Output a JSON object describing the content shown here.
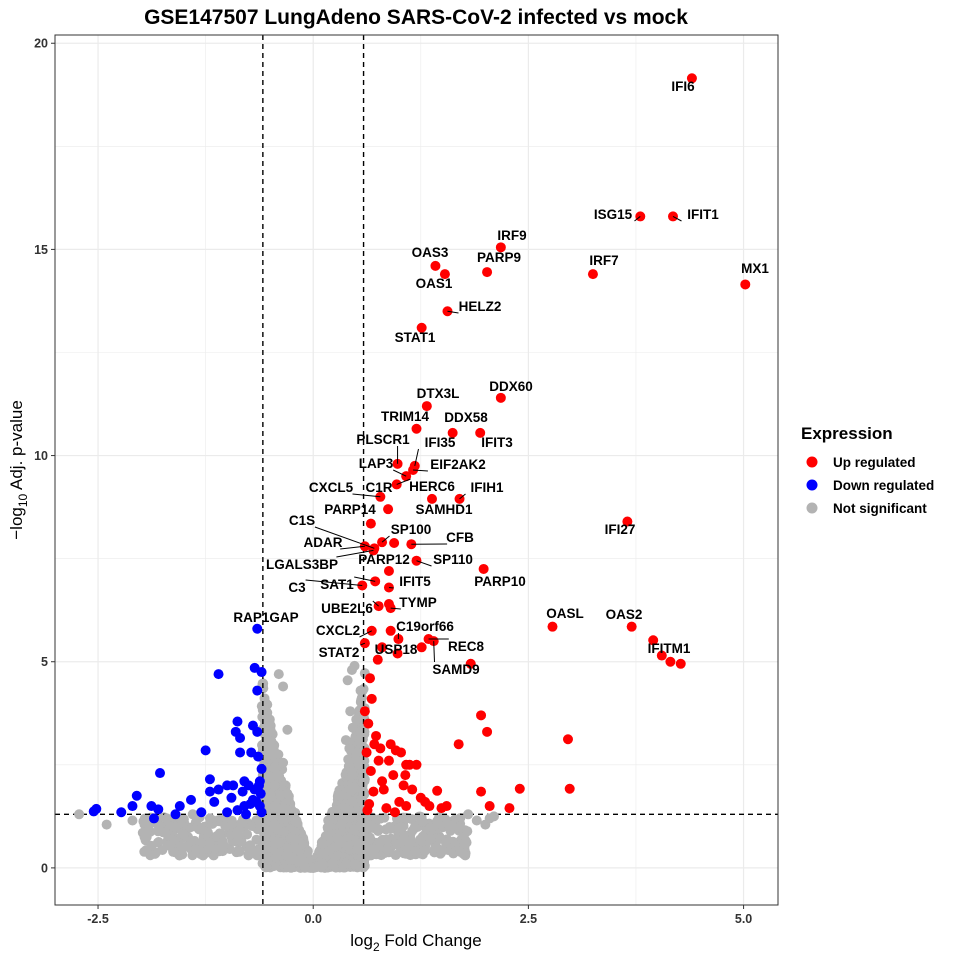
{
  "chart_data": {
    "type": "scatter",
    "title": "GSE147507 LungAdeno SARS-CoV-2 infected vs mock",
    "xlabel": "log",
    "xlabel_sub": "2",
    "xlabel_rest": " Fold Change",
    "ylabel_prefix": "−log",
    "ylabel_sub": "10",
    "ylabel_rest": " Adj. p-value",
    "xlim": [
      -3.0,
      5.4
    ],
    "ylim": [
      -0.9,
      20.2
    ],
    "xticks": [
      -2.5,
      0.0,
      2.5,
      5.0
    ],
    "xtick_labels": [
      "-2.5",
      "0.0",
      "2.5",
      "5.0"
    ],
    "yticks": [
      0,
      5,
      10,
      15,
      20
    ],
    "ytick_labels": [
      "0",
      "5",
      "10",
      "15",
      "20"
    ],
    "thresholds": {
      "x": [
        -0.585,
        0.585
      ],
      "y": 1.3
    },
    "colors": {
      "up": "#ff0000",
      "down": "#0000ff",
      "ns": "#b3b3b3",
      "grid": "#ebebeb",
      "border": "#333333"
    },
    "legend": {
      "title": "Expression",
      "position": "right",
      "entries": [
        {
          "label": "Up regulated",
          "group": "up"
        },
        {
          "label": "Down regulated",
          "group": "down"
        },
        {
          "label": "Not significant",
          "group": "ns"
        }
      ]
    },
    "labeled_points": [
      {
        "gene": "IFI6",
        "x": 4.4,
        "y": 19.15
      },
      {
        "gene": "ISG15",
        "x": 3.8,
        "y": 15.8
      },
      {
        "gene": "IFIT1",
        "x": 4.18,
        "y": 15.8
      },
      {
        "gene": "IRF9",
        "x": 2.18,
        "y": 15.05
      },
      {
        "gene": "OAS3",
        "x": 1.42,
        "y": 14.6
      },
      {
        "gene": "PARP9",
        "x": 2.02,
        "y": 14.45
      },
      {
        "gene": "IRF7",
        "x": 3.25,
        "y": 14.4
      },
      {
        "gene": "OAS1",
        "x": 1.53,
        "y": 14.4
      },
      {
        "gene": "MX1",
        "x": 5.02,
        "y": 14.15
      },
      {
        "gene": "HELZ2",
        "x": 1.56,
        "y": 13.5
      },
      {
        "gene": "STAT1",
        "x": 1.26,
        "y": 13.1
      },
      {
        "gene": "DDX60",
        "x": 2.18,
        "y": 11.4
      },
      {
        "gene": "DTX3L",
        "x": 1.32,
        "y": 11.2
      },
      {
        "gene": "TRIM14",
        "x": 1.2,
        "y": 10.65
      },
      {
        "gene": "DDX58",
        "x": 1.62,
        "y": 10.55
      },
      {
        "gene": "IFIT3",
        "x": 1.94,
        "y": 10.55
      },
      {
        "gene": "PLSCR1",
        "x": 0.98,
        "y": 9.8
      },
      {
        "gene": "IFI35",
        "x": 1.18,
        "y": 9.75
      },
      {
        "gene": "LAP3",
        "x": 1.08,
        "y": 9.5
      },
      {
        "gene": "EIF2AK2",
        "x": 1.16,
        "y": 9.65
      },
      {
        "gene": "HERC6",
        "x": 0.97,
        "y": 9.3
      },
      {
        "gene": "CXCL5",
        "x": 0.78,
        "y": 9.0
      },
      {
        "gene": "C1R",
        "x": 0.87,
        "y": 8.7
      },
      {
        "gene": "IFIH1",
        "x": 1.7,
        "y": 8.95
      },
      {
        "gene": "PARP14",
        "x": 0.67,
        "y": 8.35
      },
      {
        "gene": "SAMHD1",
        "x": 1.38,
        "y": 8.95
      },
      {
        "gene": "C1S",
        "x": 0.71,
        "y": 7.75
      },
      {
        "gene": "SP100",
        "x": 0.8,
        "y": 7.9
      },
      {
        "gene": "IFI27",
        "x": 3.65,
        "y": 8.4
      },
      {
        "gene": "ADAR",
        "x": 0.6,
        "y": 7.8
      },
      {
        "gene": "CFB",
        "x": 1.14,
        "y": 7.85
      },
      {
        "gene": "LGALS3BP",
        "x": 0.7,
        "y": 7.7
      },
      {
        "gene": "PARP12",
        "x": 0.94,
        "y": 7.88
      },
      {
        "gene": "SP110",
        "x": 1.2,
        "y": 7.45
      },
      {
        "gene": "PARP10",
        "x": 1.98,
        "y": 7.25
      },
      {
        "gene": "C3",
        "x": 0.57,
        "y": 6.85
      },
      {
        "gene": "SAT1",
        "x": 0.72,
        "y": 6.95
      },
      {
        "gene": "IFIT5",
        "x": 0.88,
        "y": 6.8
      },
      {
        "gene": "UBE2L6",
        "x": 0.76,
        "y": 6.35
      },
      {
        "gene": "TYMP",
        "x": 0.9,
        "y": 6.3
      },
      {
        "gene": "RAP1GAP",
        "x": -0.65,
        "y": 5.8
      },
      {
        "gene": "OASL",
        "x": 2.78,
        "y": 5.85
      },
      {
        "gene": "OAS2",
        "x": 3.7,
        "y": 5.85
      },
      {
        "gene": "CXCL2",
        "x": 0.68,
        "y": 5.75
      },
      {
        "gene": "C19orf66",
        "x": 0.99,
        "y": 5.55
      },
      {
        "gene": "REC8",
        "x": 1.34,
        "y": 5.55
      },
      {
        "gene": "STAT2",
        "x": 0.6,
        "y": 5.45
      },
      {
        "gene": "USP18",
        "x": 0.8,
        "y": 5.35
      },
      {
        "gene": "SAMD9",
        "x": 1.4,
        "y": 5.5
      },
      {
        "gene": "IFITM1",
        "x": 4.15,
        "y": 5.0
      }
    ],
    "unlabeled_up": [
      [
        3.95,
        5.52
      ],
      [
        4.05,
        5.15
      ],
      [
        4.27,
        4.95
      ],
      [
        1.83,
        4.95
      ],
      [
        0.98,
        5.2
      ],
      [
        0.88,
        7.2
      ],
      [
        0.9,
        5.75
      ],
      [
        0.88,
        6.4
      ],
      [
        0.75,
        5.05
      ],
      [
        1.26,
        5.35
      ],
      [
        1.95,
        3.7
      ],
      [
        2.02,
        3.3
      ],
      [
        1.69,
        3.0
      ],
      [
        2.96,
        3.12
      ],
      [
        2.98,
        1.92
      ],
      [
        2.4,
        1.92
      ],
      [
        2.28,
        1.45
      ],
      [
        2.05,
        1.5
      ],
      [
        1.95,
        1.85
      ],
      [
        1.44,
        1.87
      ],
      [
        1.49,
        1.45
      ],
      [
        1.15,
        1.9
      ],
      [
        1.07,
        2.25
      ],
      [
        1.08,
        2.5
      ],
      [
        1.02,
        2.8
      ],
      [
        0.96,
        2.85
      ],
      [
        0.78,
        2.9
      ],
      [
        0.93,
        2.25
      ],
      [
        1.0,
        1.6
      ],
      [
        1.08,
        1.5
      ],
      [
        0.82,
        1.9
      ],
      [
        0.8,
        2.1
      ],
      [
        0.76,
        2.6
      ],
      [
        0.71,
        3.0
      ],
      [
        0.73,
        3.2
      ],
      [
        0.7,
        1.85
      ],
      [
        0.65,
        1.55
      ],
      [
        0.67,
        2.35
      ],
      [
        0.85,
        1.45
      ],
      [
        1.05,
        2.0
      ],
      [
        1.2,
        2.5
      ],
      [
        1.25,
        1.7
      ],
      [
        1.35,
        1.5
      ],
      [
        1.55,
        1.5
      ],
      [
        0.62,
        2.8
      ],
      [
        0.64,
        3.5
      ],
      [
        0.9,
        3.0
      ],
      [
        0.68,
        4.1
      ],
      [
        0.66,
        4.6
      ],
      [
        0.63,
        1.4
      ],
      [
        0.6,
        3.8
      ],
      [
        0.95,
        1.35
      ],
      [
        1.12,
        2.5
      ],
      [
        0.88,
        2.6
      ],
      [
        1.3,
        1.6
      ]
    ],
    "unlabeled_down": [
      [
        -2.52,
        1.43
      ],
      [
        -2.55,
        1.37
      ],
      [
        -2.23,
        1.35
      ],
      [
        -2.1,
        1.5
      ],
      [
        -2.05,
        1.75
      ],
      [
        -1.88,
        1.5
      ],
      [
        -1.85,
        1.2
      ],
      [
        -1.78,
        2.3
      ],
      [
        -1.8,
        1.42
      ],
      [
        -1.6,
        1.3
      ],
      [
        -1.55,
        1.5
      ],
      [
        -1.42,
        1.65
      ],
      [
        -1.3,
        1.35
      ],
      [
        -1.25,
        2.85
      ],
      [
        -1.2,
        1.85
      ],
      [
        -1.2,
        2.15
      ],
      [
        -1.15,
        1.6
      ],
      [
        -1.1,
        1.9
      ],
      [
        -1.1,
        4.7
      ],
      [
        -1.0,
        1.35
      ],
      [
        -0.95,
        1.7
      ],
      [
        -0.93,
        2.0
      ],
      [
        -0.9,
        3.3
      ],
      [
        -0.88,
        3.55
      ],
      [
        -0.85,
        2.8
      ],
      [
        -0.85,
        3.15
      ],
      [
        -0.82,
        1.85
      ],
      [
        -0.8,
        1.5
      ],
      [
        -0.8,
        2.1
      ],
      [
        -0.78,
        1.3
      ],
      [
        -0.75,
        2.0
      ],
      [
        -0.72,
        2.8
      ],
      [
        -0.7,
        3.45
      ],
      [
        -0.7,
        1.65
      ],
      [
        -0.68,
        1.9
      ],
      [
        -0.68,
        4.85
      ],
      [
        -0.65,
        4.3
      ],
      [
        -0.65,
        3.3
      ],
      [
        -0.64,
        2.7
      ],
      [
        -0.63,
        2.0
      ],
      [
        -0.62,
        1.5
      ],
      [
        -0.61,
        1.8
      ],
      [
        -0.6,
        4.75
      ],
      [
        -0.6,
        2.4
      ],
      [
        -0.6,
        1.35
      ],
      [
        -0.62,
        2.1
      ],
      [
        -0.73,
        1.55
      ],
      [
        -0.88,
        1.4
      ],
      [
        -1.0,
        2.0
      ],
      [
        -0.66,
        1.6
      ]
    ],
    "unlabeled_ns": [
      [
        -2.72,
        1.3
      ],
      [
        -2.4,
        1.05
      ],
      [
        -2.1,
        1.15
      ],
      [
        -1.85,
        1.1
      ],
      [
        -1.7,
        1.2
      ],
      [
        -1.6,
        1.0
      ],
      [
        -1.4,
        1.3
      ],
      [
        -1.3,
        0.95
      ],
      [
        -1.2,
        1.2
      ],
      [
        -0.4,
        4.7
      ],
      [
        -0.35,
        4.4
      ],
      [
        -0.3,
        3.35
      ],
      [
        -0.35,
        2.55
      ],
      [
        -0.4,
        2.2
      ],
      [
        -0.45,
        2.0
      ],
      [
        -0.5,
        3.3
      ],
      [
        -0.3,
        1.8
      ],
      [
        0.4,
        4.55
      ],
      [
        0.45,
        4.8
      ],
      [
        0.43,
        3.8
      ],
      [
        0.46,
        3.4
      ],
      [
        0.5,
        2.8
      ],
      [
        0.42,
        2.9
      ],
      [
        0.5,
        3.6
      ],
      [
        0.55,
        4.3
      ],
      [
        0.48,
        4.9
      ],
      [
        0.38,
        3.1
      ],
      [
        2.0,
        1.05
      ],
      [
        2.1,
        1.25
      ],
      [
        1.8,
        1.3
      ],
      [
        2.05,
        1.2
      ],
      [
        1.9,
        1.15
      ]
    ]
  }
}
